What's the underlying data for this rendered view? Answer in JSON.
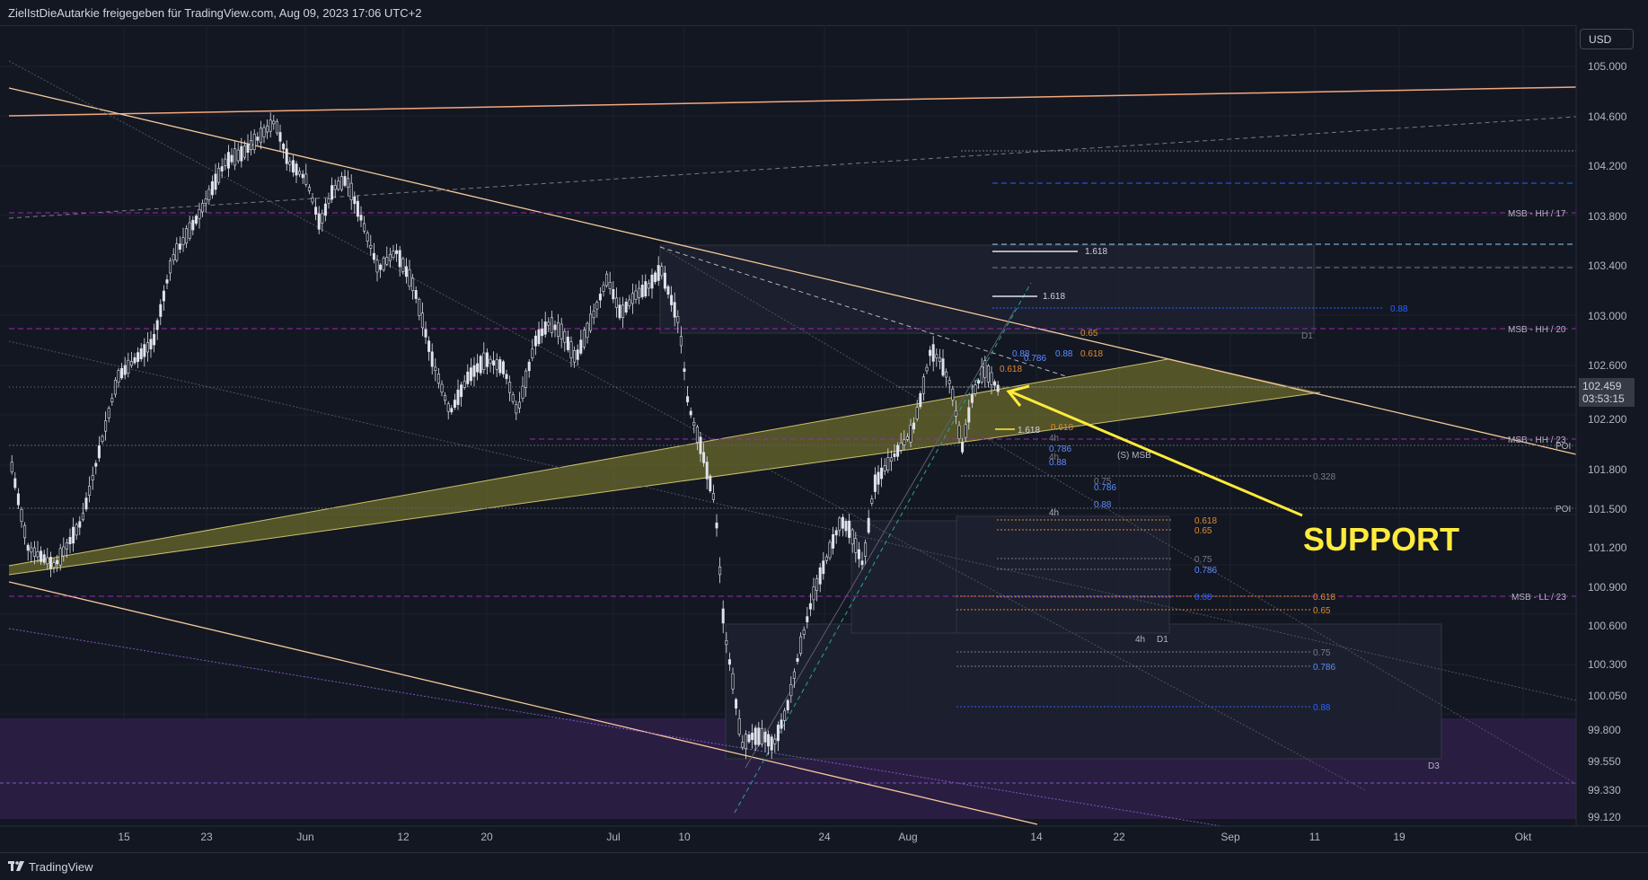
{
  "header": {
    "title": "ZielIstDieAutarkie freigegeben für TradingView.com, Aug 09, 2023 17:06 UTC+2"
  },
  "footer": {
    "brand": "TradingView"
  },
  "currency": "USD",
  "last_price": {
    "price": "102.459",
    "countdown": "03:53:15"
  },
  "y_axis": [
    "105.000",
    "104.600",
    "104.200",
    "103.800",
    "103.400",
    "103.000",
    "102.600",
    "102.200",
    "101.800",
    "101.500",
    "101.200",
    "100.900",
    "100.600",
    "100.300",
    "100.050",
    "99.800",
    "99.550",
    "99.330",
    "99.120"
  ],
  "x_axis": [
    "15",
    "23",
    "Jun",
    "12",
    "20",
    "Jul",
    "10",
    "24",
    "Aug",
    "14",
    "22",
    "Sep",
    "11",
    "19",
    "Okt"
  ],
  "levels": {
    "msb_hh_17": "MSB - HH / 17",
    "msb_hh_20": "MSB - HH / 20",
    "msb_hh_23": "MSB - HH / 23",
    "poi": "POI",
    "msb_ll_23": "MSB - LL / 23",
    "msb_s": "(S) MSB"
  },
  "fib": {
    "f1618": "1.618",
    "f088": "0.88",
    "f0786": "0.786",
    "f075": "0.75",
    "f065": "0.65",
    "f0618": "0.618",
    "f0328": "0.328"
  },
  "timeframes": {
    "d1": "D1",
    "h4": "4h",
    "d3": "D3"
  },
  "annotation": {
    "support": "SUPPORT",
    "support_color": "#ffeb3b"
  },
  "colors": {
    "background": "#131722",
    "candle": "#e0e3eb",
    "msb_line": "#9c27b0",
    "trend_line": "#f5c89a",
    "fib_blue": "#2962ff",
    "fib_orange": "#e08a2d"
  }
}
